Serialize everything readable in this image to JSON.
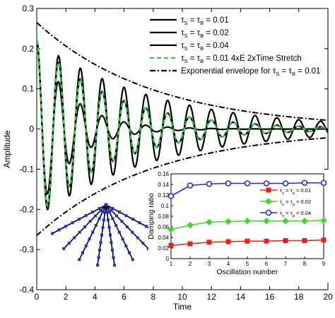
{
  "chart_data": [
    {
      "type": "line",
      "xlabel": "Time",
      "ylabel": "Amplitude",
      "xlim": [
        0,
        20
      ],
      "ylim": [
        -0.4,
        0.3
      ],
      "x_ticks": [
        "0",
        "2",
        "4",
        "6",
        "8",
        "10",
        "12",
        "14",
        "16",
        "18",
        "20"
      ],
      "y_ticks": [
        "-0.4",
        "-0.3",
        "-0.2",
        "-0.1",
        "0",
        "0.1",
        "0.2",
        "0.3"
      ],
      "legend_placement": "top-right",
      "grid": false,
      "initial_amplitude": 0.22,
      "oscillation_period": 1.5,
      "series": [
        {
          "label_tau_value": "0.01",
          "style": "solid",
          "color": "#000000",
          "envelope_peak": 0.265,
          "decay_rate": 0.125
        },
        {
          "label_tau_value": "0.02",
          "style": "solid",
          "color": "#000000",
          "envelope_peak": 0.265,
          "decay_rate": 0.19
        },
        {
          "label_tau_value": "0.04",
          "style": "solid",
          "color": "#000000",
          "envelope_peak": 0.265,
          "decay_rate": 0.42
        },
        {
          "label_tau_value": "0.01",
          "label_suffix": "4xE   2xTime Stretch",
          "style": "dashed",
          "color": "#2ecc40",
          "envelope_peak": 0.265,
          "decay_rate": 0.19
        },
        {
          "label_prefix": "Exponential envelope for",
          "label_tau_value": "0.01",
          "style": "dash-dot",
          "color": "#000000",
          "envelope_peak": 0.265,
          "decay_rate": 0.125
        }
      ]
    },
    {
      "type": "line",
      "xlabel": "Oscillation number",
      "ylabel": "Damping ratio",
      "xlim": [
        1,
        9
      ],
      "ylim": [
        0,
        0.16
      ],
      "x_ticks": [
        "1",
        "2",
        "3",
        "4",
        "5",
        "6",
        "7",
        "8",
        "9"
      ],
      "y_ticks": [
        "0",
        "0.02",
        "0.04",
        "0.06",
        "0.08",
        "0.1",
        "0.12",
        "0.14",
        "0.16"
      ],
      "legend_placement": "top-right",
      "x": [
        1,
        2,
        3,
        4,
        5,
        6,
        7,
        8,
        9
      ],
      "series": [
        {
          "label_tau_value": "0.01",
          "marker": "square",
          "color": "#e8201a",
          "values": [
            0.025,
            0.028,
            0.031,
            0.032,
            0.033,
            0.033,
            0.034,
            0.034,
            0.035
          ]
        },
        {
          "label_tau_value": "0.02",
          "marker": "diamond",
          "color": "#33e01a",
          "values": [
            0.055,
            0.063,
            0.069,
            0.07,
            0.071,
            0.071,
            0.071,
            0.071,
            0.072
          ]
        },
        {
          "label_tau_value": "0.04",
          "marker": "circle",
          "color": "#1a2ae8",
          "values": [
            0.118,
            0.138,
            0.141,
            0.142,
            0.142,
            0.142,
            0.142,
            0.143,
            0.143
          ]
        }
      ]
    }
  ],
  "legend_tau_prefix": "τ",
  "legend_sub_s": "S",
  "legend_sub_b": "B",
  "fan_colors": {
    "line": "#000000",
    "node": "#1a2ae8"
  }
}
